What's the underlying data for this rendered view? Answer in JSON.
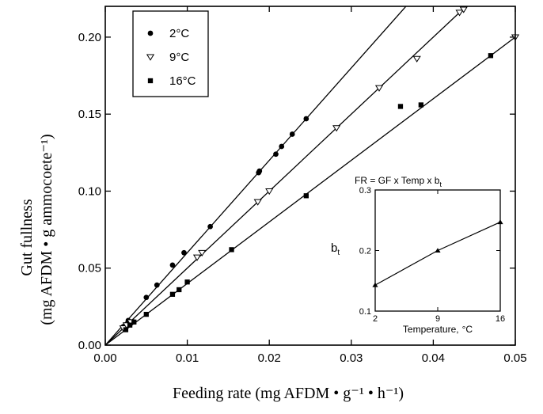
{
  "chart_data": [
    {
      "type": "scatter",
      "xlabel": "Feeding rate (mg AFDM • g⁻¹ • h⁻¹)",
      "ylabel_line1": "Gut fullness",
      "ylabel_line2": "(mg AFDM • g ammocoete⁻¹)",
      "xlim": [
        0,
        0.05
      ],
      "ylim": [
        0,
        0.22
      ],
      "x_ticks": [
        "0.00",
        "0.01",
        "0.02",
        "0.03",
        "0.04",
        "0.05"
      ],
      "y_ticks": [
        "0.00",
        "0.05",
        "0.10",
        "0.15",
        "0.20"
      ],
      "legend_position": "top-left",
      "series": [
        {
          "name": "2°C",
          "marker": "circle",
          "slope": 6.0,
          "points": [
            [
              0.0022,
              0.012
            ],
            [
              0.0028,
              0.016
            ],
            [
              0.005,
              0.031
            ],
            [
              0.0063,
              0.039
            ],
            [
              0.0082,
              0.052
            ],
            [
              0.0096,
              0.06
            ],
            [
              0.0128,
              0.077
            ],
            [
              0.0187,
              0.112
            ],
            [
              0.0188,
              0.113
            ],
            [
              0.0208,
              0.124
            ],
            [
              0.0215,
              0.129
            ],
            [
              0.0228,
              0.137
            ],
            [
              0.0245,
              0.147
            ]
          ]
        },
        {
          "name": "9°C",
          "marker": "triangle-down",
          "slope": 5.0,
          "points": [
            [
              0.0022,
              0.011
            ],
            [
              0.0026,
              0.013
            ],
            [
              0.0031,
              0.015
            ],
            [
              0.0112,
              0.057
            ],
            [
              0.0118,
              0.06
            ],
            [
              0.0186,
              0.093
            ],
            [
              0.02,
              0.1
            ],
            [
              0.0282,
              0.141
            ],
            [
              0.0334,
              0.167
            ],
            [
              0.038,
              0.186
            ],
            [
              0.0432,
              0.216
            ],
            [
              0.0437,
              0.218
            ],
            [
              0.05,
              0.2
            ]
          ]
        },
        {
          "name": "16°C",
          "marker": "square",
          "slope": 4.0,
          "points": [
            [
              0.0025,
              0.01
            ],
            [
              0.003,
              0.013
            ],
            [
              0.0035,
              0.015
            ],
            [
              0.005,
              0.02
            ],
            [
              0.0082,
              0.033
            ],
            [
              0.009,
              0.036
            ],
            [
              0.01,
              0.041
            ],
            [
              0.0154,
              0.062
            ],
            [
              0.0245,
              0.097
            ],
            [
              0.036,
              0.155
            ],
            [
              0.0385,
              0.156
            ],
            [
              0.047,
              0.188
            ]
          ]
        }
      ]
    },
    {
      "type": "line",
      "title": "FR = GF x Temp x b",
      "title_subscript": "t",
      "xlabel": "Temperature,",
      "xlabel_unit": "°C",
      "ylabel": "b",
      "ylabel_subscript": "t",
      "x_ticks": [
        "2",
        "9",
        "16"
      ],
      "y_ticks": [
        "0.1",
        "0.2",
        "0.3"
      ],
      "xlim": [
        2,
        16
      ],
      "ylim": [
        0.1,
        0.3
      ],
      "x": [
        2,
        9,
        16
      ],
      "y": [
        0.143,
        0.2,
        0.247
      ],
      "marker": "triangle-up"
    }
  ]
}
